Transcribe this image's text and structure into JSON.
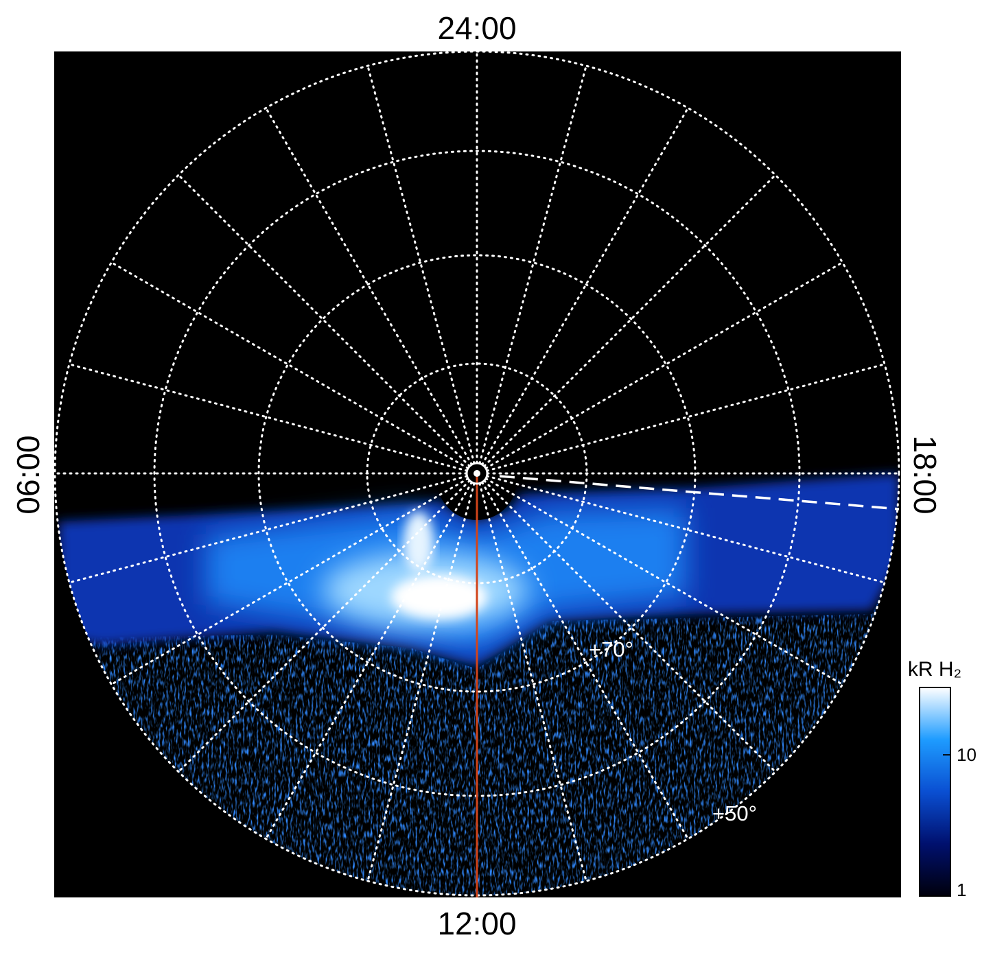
{
  "plot": {
    "local_time_labels": {
      "top": "24:00",
      "bottom": "12:00",
      "left": "06:00",
      "right": "18:00"
    },
    "latitude_labels": [
      "+70°",
      "+50°"
    ]
  },
  "colorbar": {
    "title": "kR H₂",
    "scale": "log",
    "lim": [
      1,
      30
    ],
    "ticks": [
      1,
      10
    ],
    "colormap": [
      "#00000c",
      "#00106e",
      "#0a4fd2",
      "#1e9cff",
      "#ffffff"
    ]
  }
}
